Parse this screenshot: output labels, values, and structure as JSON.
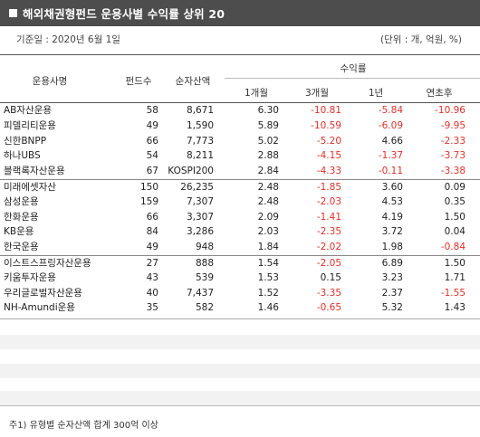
{
  "title": "해외채권형펀드 운용사별 수익률 상위 20",
  "base_date": "기준일 : 2020년 6월 1일",
  "unit": "(단위 : 개, 억원, %)",
  "headers": {
    "manager": "운용사명",
    "fund_count": "펀드수",
    "aum": "순자산액",
    "returns": "수익률",
    "m1": "1개월",
    "m3": "3개월",
    "y1": "1년",
    "ytd": "연초후"
  },
  "rows": [
    {
      "name": "AB자산운용",
      "count": "58",
      "aum": "8,671",
      "m1": "6.30",
      "m3": "-10.81",
      "y1": "-5.84",
      "ytd": "-10.96"
    },
    {
      "name": "피델리티운용",
      "count": "49",
      "aum": "1,590",
      "m1": "5.89",
      "m3": "-10.59",
      "y1": "-6.09",
      "ytd": "-9.95"
    },
    {
      "name": "신한BNPP",
      "count": "66",
      "aum": "7,773",
      "m1": "5.02",
      "m3": "-5.20",
      "y1": "4.66",
      "ytd": "-2.33"
    },
    {
      "name": "하나UBS",
      "count": "54",
      "aum": "8,211",
      "m1": "2.88",
      "m3": "-4.15",
      "y1": "-1.37",
      "ytd": "-3.73"
    },
    {
      "name": "블랙록자산운용",
      "count": "67",
      "aum": "KOSPI200",
      "m1": "2.84",
      "m3": "-4.33",
      "y1": "-0.11",
      "ytd": "-3.38"
    },
    {
      "name": "미래에셋자산",
      "count": "150",
      "aum": "26,235",
      "m1": "2.48",
      "m3": "-1.85",
      "y1": "3.60",
      "ytd": "0.09"
    },
    {
      "name": "삼성운용",
      "count": "159",
      "aum": "7,307",
      "m1": "2.48",
      "m3": "-2.03",
      "y1": "4.53",
      "ytd": "0.35"
    },
    {
      "name": "한화운용",
      "count": "66",
      "aum": "3,307",
      "m1": "2.09",
      "m3": "-1.41",
      "y1": "4.19",
      "ytd": "1.50"
    },
    {
      "name": "KB운용",
      "count": "84",
      "aum": "3,286",
      "m1": "2.03",
      "m3": "-2.35",
      "y1": "3.72",
      "ytd": "0.04"
    },
    {
      "name": "한국운용",
      "count": "49",
      "aum": "948",
      "m1": "1.84",
      "m3": "-2.02",
      "y1": "1.98",
      "ytd": "-0.84"
    },
    {
      "name": "이스트스프링자산운용",
      "count": "27",
      "aum": "888",
      "m1": "1.54",
      "m3": "-2.05",
      "y1": "6.89",
      "ytd": "1.50"
    },
    {
      "name": "키움투자운용",
      "count": "43",
      "aum": "539",
      "m1": "1.53",
      "m3": "0.15",
      "y1": "3.23",
      "ytd": "1.71"
    },
    {
      "name": "우리글로벌자산운용",
      "count": "40",
      "aum": "7,437",
      "m1": "1.52",
      "m3": "-3.35",
      "y1": "2.37",
      "ytd": "-1.55"
    },
    {
      "name": "NH-Amundi운용",
      "count": "35",
      "aum": "582",
      "m1": "1.46",
      "m3": "-0.65",
      "y1": "5.32",
      "ytd": "1.43"
    }
  ],
  "separator_before": [
    5,
    10
  ],
  "negative_color": "#e0302a",
  "footnote": "주1) 유형별 순자산액 합계 300억 이상"
}
